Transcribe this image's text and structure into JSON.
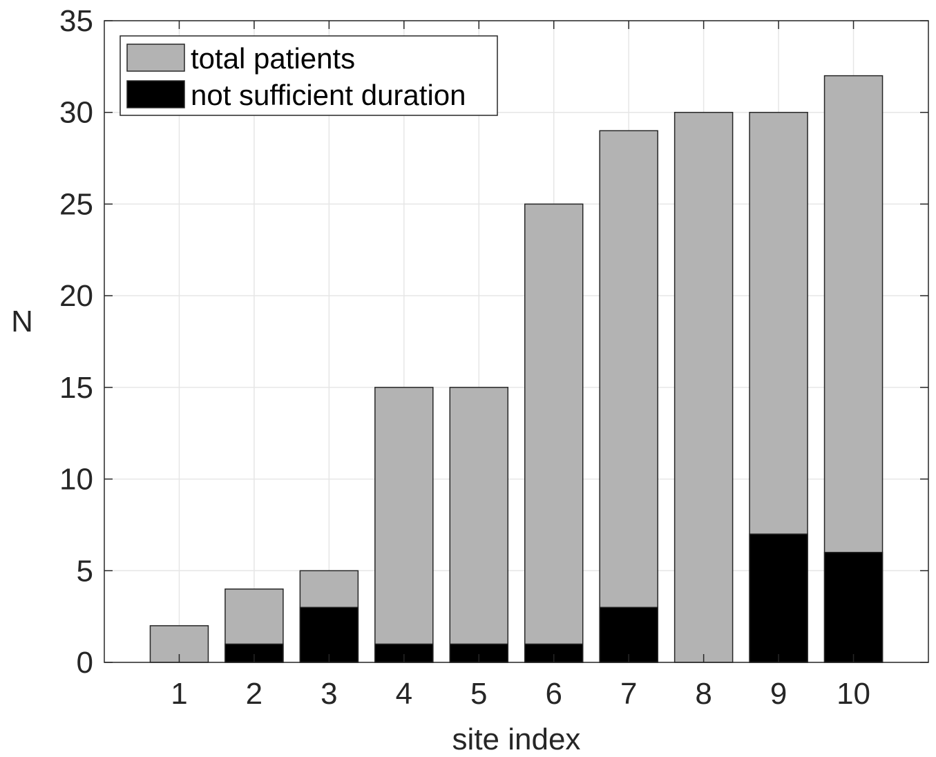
{
  "chart_data": {
    "type": "bar",
    "categories": [
      "1",
      "2",
      "3",
      "4",
      "5",
      "6",
      "7",
      "8",
      "9",
      "10"
    ],
    "series": [
      {
        "name": "total patients",
        "values": [
          2,
          4,
          5,
          15,
          15,
          25,
          29,
          30,
          30,
          32
        ],
        "color": "#b3b3b3"
      },
      {
        "name": "not sufficient duration",
        "values": [
          0,
          1,
          3,
          1,
          1,
          1,
          3,
          0,
          7,
          6
        ],
        "color": "#000000"
      }
    ],
    "xlabel": "site index",
    "ylabel": "N",
    "xlim": [
      0,
      11
    ],
    "ylim": [
      0,
      35
    ],
    "yticks": [
      0,
      5,
      10,
      15,
      20,
      25,
      30,
      35
    ],
    "grid": true,
    "legend_position": "top-left"
  }
}
